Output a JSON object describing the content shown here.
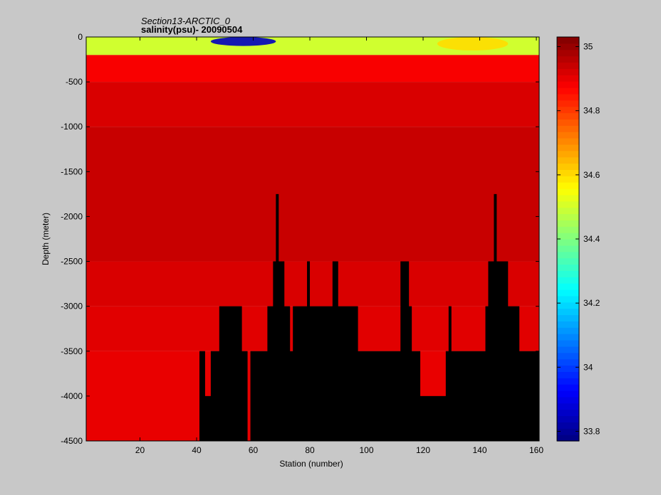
{
  "chart_data": {
    "type": "heatmap",
    "title": "Section13-ARCTIC_0",
    "subtitle": "salinity(psu)- 20090504",
    "xlabel": "Station (number)",
    "ylabel": "Depth (meter)",
    "xlim": [
      1,
      161
    ],
    "ylim": [
      -4500,
      0
    ],
    "x_ticks": [
      20,
      40,
      60,
      80,
      100,
      120,
      140,
      160
    ],
    "y_ticks": [
      0,
      -500,
      -1000,
      -1500,
      -2000,
      -2500,
      -3000,
      -3500,
      -4000,
      -4500
    ],
    "colorbar": {
      "range": [
        33.77,
        35.03
      ],
      "ticks": [
        33.8,
        34,
        34.2,
        34.4,
        34.6,
        34.8,
        35
      ]
    },
    "depth_layers": [
      {
        "depth": [
          -2500,
          -3000
        ],
        "salinity": 34.92
      },
      {
        "depth": [
          -3000,
          -3500
        ],
        "salinity": 34.91
      },
      {
        "depth": [
          -3500,
          -4500
        ],
        "salinity": 34.9
      },
      {
        "depth": [
          -1000,
          -2500
        ],
        "salinity": 34.94
      },
      {
        "depth": [
          -500,
          -1000
        ],
        "salinity": 34.92
      },
      {
        "depth": [
          -200,
          -500
        ],
        "salinity": 34.88
      },
      {
        "depth": [
          0,
          -200
        ],
        "salinity": 34.5
      }
    ],
    "surface_features": [
      {
        "stations": [
          45,
          68
        ],
        "depth": [
          0,
          -100
        ],
        "salinity": 33.85
      },
      {
        "stations": [
          125,
          150
        ],
        "depth": [
          0,
          -150
        ],
        "salinity": 34.6
      }
    ],
    "seafloor_depth": [
      {
        "station": 1,
        "bottom": -4500
      },
      {
        "station": 40,
        "bottom": -4500
      },
      {
        "station": 41,
        "bottom": -3500
      },
      {
        "station": 43,
        "bottom": -4000
      },
      {
        "station": 45,
        "bottom": -3500
      },
      {
        "station": 48,
        "bottom": -3000
      },
      {
        "station": 56,
        "bottom": -3500
      },
      {
        "station": 58,
        "bottom": -4500
      },
      {
        "station": 59,
        "bottom": -3500
      },
      {
        "station": 65,
        "bottom": -3000
      },
      {
        "station": 67,
        "bottom": -2500
      },
      {
        "station": 68,
        "bottom": -1750
      },
      {
        "station": 69,
        "bottom": -2500
      },
      {
        "station": 71,
        "bottom": -3000
      },
      {
        "station": 73,
        "bottom": -3500
      },
      {
        "station": 74,
        "bottom": -3000
      },
      {
        "station": 79,
        "bottom": -2500
      },
      {
        "station": 80,
        "bottom": -3000
      },
      {
        "station": 88,
        "bottom": -2500
      },
      {
        "station": 90,
        "bottom": -3000
      },
      {
        "station": 97,
        "bottom": -3500
      },
      {
        "station": 112,
        "bottom": -2500
      },
      {
        "station": 115,
        "bottom": -3000
      },
      {
        "station": 116,
        "bottom": -3500
      },
      {
        "station": 119,
        "bottom": -4000
      },
      {
        "station": 128,
        "bottom": -3500
      },
      {
        "station": 129,
        "bottom": -3000
      },
      {
        "station": 130,
        "bottom": -3500
      },
      {
        "station": 142,
        "bottom": -3000
      },
      {
        "station": 143,
        "bottom": -2500
      },
      {
        "station": 145,
        "bottom": -1750
      },
      {
        "station": 146,
        "bottom": -2500
      },
      {
        "station": 150,
        "bottom": -3000
      },
      {
        "station": 154,
        "bottom": -3500
      },
      {
        "station": 161,
        "bottom": -3500
      }
    ]
  }
}
